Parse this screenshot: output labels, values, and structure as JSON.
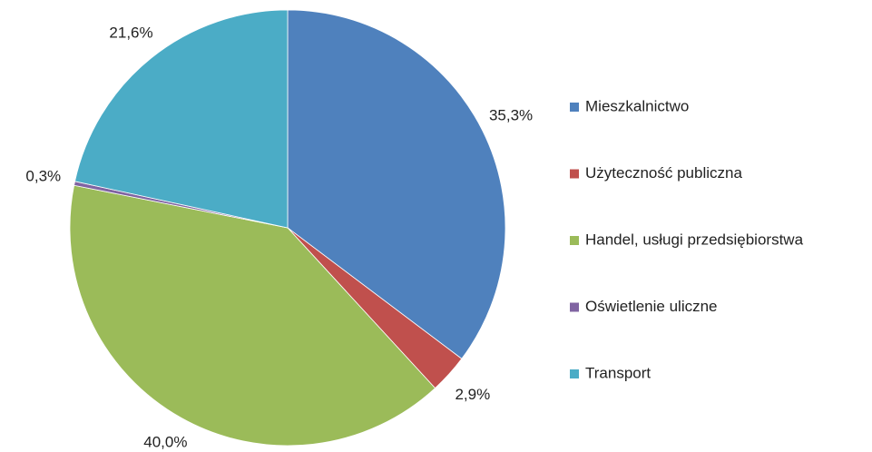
{
  "chart_data": {
    "type": "pie",
    "categories": [
      "Mieszkalnictwo",
      "Użyteczność publiczna",
      "Handel, usługi przedsiębiorstwa",
      "Oświetlenie uliczne",
      "Transport"
    ],
    "values": [
      35.3,
      2.9,
      40.0,
      0.3,
      21.6
    ],
    "value_labels": [
      "35,3%",
      "2,9%",
      "40,0%",
      "0,3%",
      "21,6%"
    ],
    "colors": [
      "#4f81bd",
      "#c0504d",
      "#9bbb59",
      "#8064a2",
      "#4bacc6"
    ],
    "legend": "right"
  }
}
